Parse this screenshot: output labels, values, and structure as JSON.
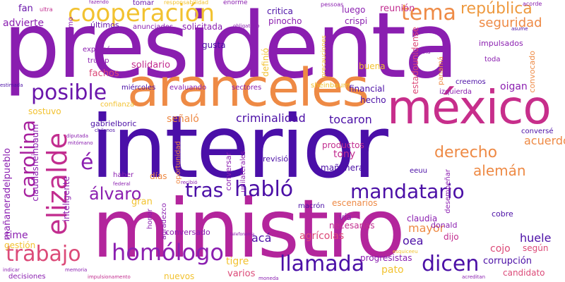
{
  "palette": {
    "indigo": "#4b0fa6",
    "purple": "#8b1fb0",
    "magenta": "#c22d8f",
    "pink": "#dc4a78",
    "orange": "#ee8a45",
    "yellow": "#f2c230"
  },
  "words": [
    {
      "text": "presidenta",
      "color": "#8a1eb0"
    },
    {
      "text": "interior",
      "color": "#4a0fa8"
    },
    {
      "text": "ministro",
      "color": "#b3259c"
    },
    {
      "text": "aranceles",
      "color": "#ee8a45"
    },
    {
      "text": "méxico",
      "color": "#c72e8b"
    },
    {
      "text": "cooperación",
      "color": "#f2c230"
    },
    {
      "text": "tema",
      "color": "#ee8a45"
    },
    {
      "text": "república",
      "color": "#ee9a40"
    },
    {
      "text": "seguridad",
      "color": "#ee8a45"
    },
    {
      "text": "posible",
      "color": "#6a16ab"
    },
    {
      "text": "habló",
      "color": "#4b0fa6"
    },
    {
      "text": "mandatario",
      "color": "#4b0fa6"
    },
    {
      "text": "tras",
      "color": "#4b0fa6"
    },
    {
      "text": "álvaro",
      "color": "#8b1fb0"
    },
    {
      "text": "carolina",
      "color": "#a7209e"
    },
    {
      "text": "elizalde",
      "color": "#c22d8f"
    },
    {
      "text": "trabajo",
      "color": "#dc4a78"
    },
    {
      "text": "homólogo",
      "color": "#8b1fb0"
    },
    {
      "text": "llamada",
      "color": "#4b0fa6"
    },
    {
      "text": "dicen",
      "color": "#4b0fa6"
    },
    {
      "text": "derecho",
      "color": "#ee8a45"
    },
    {
      "text": "alemán",
      "color": "#ee8a45"
    },
    {
      "text": "acuerdo",
      "color": "#ee8a45"
    },
    {
      "text": "criminalidad",
      "color": "#4b0fa6"
    },
    {
      "text": "tocaron",
      "color": "#4b0fa6"
    },
    {
      "text": "é",
      "color": "#8b1fb0"
    },
    {
      "text": "fan",
      "color": "#6a16ab"
    },
    {
      "text": "advierte",
      "color": "#8b1fb0"
    },
    {
      "text": "últimos",
      "color": "#6a16ab"
    },
    {
      "text": "anunciados",
      "color": "#8b1fb0"
    },
    {
      "text": "solicitada",
      "color": "#8b1fb0"
    },
    {
      "text": "tomar",
      "color": "#6a16ab"
    },
    {
      "text": "critica",
      "color": "#4b0fa6"
    },
    {
      "text": "pinocho",
      "color": "#8b1fb0"
    },
    {
      "text": "luego",
      "color": "#8b1fb0"
    },
    {
      "text": "crispi",
      "color": "#8b1fb0"
    },
    {
      "text": "reunión",
      "color": "#c22d8f"
    },
    {
      "text": "estadounidense",
      "color": "#dc4a78"
    },
    {
      "text": "impulsados",
      "color": "#8b1fb0"
    },
    {
      "text": "toda",
      "color": "#8b1fb0"
    },
    {
      "text": "convocado",
      "color": "#ee8a45"
    },
    {
      "text": "oigan",
      "color": "#8b1fb0"
    },
    {
      "text": "izquierda",
      "color": "#8b1fb0"
    },
    {
      "text": "creemos",
      "color": "#4b0fa6"
    },
    {
      "text": "panamá",
      "color": "#ee8a45"
    },
    {
      "text": "buena",
      "color": "#f2c230"
    },
    {
      "text": "gusta",
      "color": "#4b0fa6"
    },
    {
      "text": "expresó",
      "color": "#8b1fb0"
    },
    {
      "text": "trump",
      "color": "#8b1fb0"
    },
    {
      "text": "solidario",
      "color": "#c22d8f"
    },
    {
      "text": "fachos",
      "color": "#dc4a78"
    },
    {
      "text": "multilateralismo",
      "color": "#8b1fb0"
    },
    {
      "text": "definió",
      "color": "#f2c230"
    },
    {
      "text": "financial",
      "color": "#4b0fa6"
    },
    {
      "text": "hecho",
      "color": "#4b0fa6"
    },
    {
      "text": "miércoles",
      "color": "#4b0fa6"
    },
    {
      "text": "evaluando",
      "color": "#8b1fb0"
    },
    {
      "text": "sectores",
      "color": "#8b1fb0"
    },
    {
      "text": "sheinbaum",
      "color": "#f2c230"
    },
    {
      "text": "sostuvo",
      "color": "#f2c230"
    },
    {
      "text": "confianza",
      "color": "#f2c230"
    },
    {
      "text": "señaló",
      "color": "#ee8a45"
    },
    {
      "text": "gabrielboric",
      "color": "#4b0fa6"
    },
    {
      "text": "claudiasheinbaum",
      "color": "#8b1fb0"
    },
    {
      "text": "tony",
      "color": "#c22d8f"
    },
    {
      "text": "mañanera",
      "color": "#4b0fa6"
    },
    {
      "text": "productos",
      "color": "#c22d8f"
    },
    {
      "text": "revisión",
      "color": "#4b0fa6"
    },
    {
      "text": "eeuu",
      "color": "#4b0fa6"
    },
    {
      "text": "conversé",
      "color": "#4b0fa6"
    },
    {
      "text": "desempeñar",
      "color": "#8b1fb0"
    },
    {
      "text": "mañaneradelpueblo",
      "color": "#8b1fb0"
    },
    {
      "text": "gran",
      "color": "#f2c230"
    },
    {
      "text": "inteligente",
      "color": "#8b1fb0"
    },
    {
      "text": "haber",
      "color": "#8b1fb0"
    },
    {
      "text": "días",
      "color": "#ee8a45"
    },
    {
      "text": "oportunidad",
      "color": "#ee8a45"
    },
    {
      "text": "conversar",
      "color": "#8b1fb0"
    },
    {
      "text": "unilaterales",
      "color": "#8b1fb0"
    },
    {
      "text": "macrón",
      "color": "#4b0fa6"
    },
    {
      "text": "escenarios",
      "color": "#ee8a45"
    },
    {
      "text": "vía",
      "color": "#8b1fb0"
    },
    {
      "text": "necesarias",
      "color": "#c22d8f"
    },
    {
      "text": "agrícolas",
      "color": "#dc4a78"
    },
    {
      "text": "acá",
      "color": "#4b0fa6"
    },
    {
      "text": "conversado",
      "color": "#8b1fb0"
    },
    {
      "text": "claudia",
      "color": "#8b1fb0"
    },
    {
      "text": "mayor",
      "color": "#ee8a45"
    },
    {
      "text": "oea",
      "color": "#4b0fa6"
    },
    {
      "text": "donald",
      "color": "#8b1fb0"
    },
    {
      "text": "dijo",
      "color": "#c22d8f"
    },
    {
      "text": "huele",
      "color": "#4b0fa6"
    },
    {
      "text": "según",
      "color": "#dc4a78"
    },
    {
      "text": "cobre",
      "color": "#4b0fa6"
    },
    {
      "text": "time",
      "color": "#8b1fb0"
    },
    {
      "text": "gestión",
      "color": "#f2c230"
    },
    {
      "text": "honor",
      "color": "#8b1fb0"
    },
    {
      "text": "tigre",
      "color": "#f2c230"
    },
    {
      "text": "varios",
      "color": "#dc4a78"
    },
    {
      "text": "pato",
      "color": "#f2c230"
    },
    {
      "text": "progresistas",
      "color": "#8b1fb0"
    },
    {
      "text": "cojo",
      "color": "#dc4a78"
    },
    {
      "text": "corrupción",
      "color": "#4b0fa6"
    },
    {
      "text": "candidato",
      "color": "#dc4a78"
    },
    {
      "text": "decisiones",
      "color": "#8b1fb0"
    },
    {
      "text": "nuevos",
      "color": "#f2c230"
    },
    {
      "text": "agradezco",
      "color": "#8b1fb0"
    },
    {
      "text": "ultra",
      "color": "#c22d8f"
    },
    {
      "text": "responsabilidad",
      "color": "#f2c230"
    },
    {
      "text": "enorme",
      "color": "#8b1fb0"
    },
    {
      "text": "pessoas",
      "color": "#8b1fb0"
    },
    {
      "text": "acorde",
      "color": "#8b1fb0"
    },
    {
      "text": "obligatorio",
      "color": "#8b1fb0"
    },
    {
      "text": "asume",
      "color": "#4b0fa6"
    },
    {
      "text": "favor",
      "color": "#8b1fb0"
    },
    {
      "text": "estimada",
      "color": "#4b0fa6"
    },
    {
      "text": "precauciones",
      "color": "#f2c230"
    },
    {
      "text": "bsiola",
      "color": "#8b1fb0"
    },
    {
      "text": "chilenos",
      "color": "#4b0fa6"
    },
    {
      "text": "recibió",
      "color": "#8b1fb0"
    },
    {
      "text": "federal",
      "color": "#8b1fb0"
    },
    {
      "text": "diputada",
      "color": "#8b1fb0"
    },
    {
      "text": "mitómano",
      "color": "#8b1fb0"
    },
    {
      "text": "telefonema",
      "color": "#8b1fb0"
    },
    {
      "text": "esquiceeu",
      "color": "#f2c230"
    },
    {
      "text": "acreditan",
      "color": "#8b1fb0"
    },
    {
      "text": "impulsionamento",
      "color": "#c22d8f"
    },
    {
      "text": "moneda",
      "color": "#8b1fb0"
    },
    {
      "text": "indicar",
      "color": "#8b1fb0"
    },
    {
      "text": "memoria",
      "color": "#8b1fb0"
    },
    {
      "text": "fazendo",
      "color": "#8b1fb0"
    }
  ]
}
